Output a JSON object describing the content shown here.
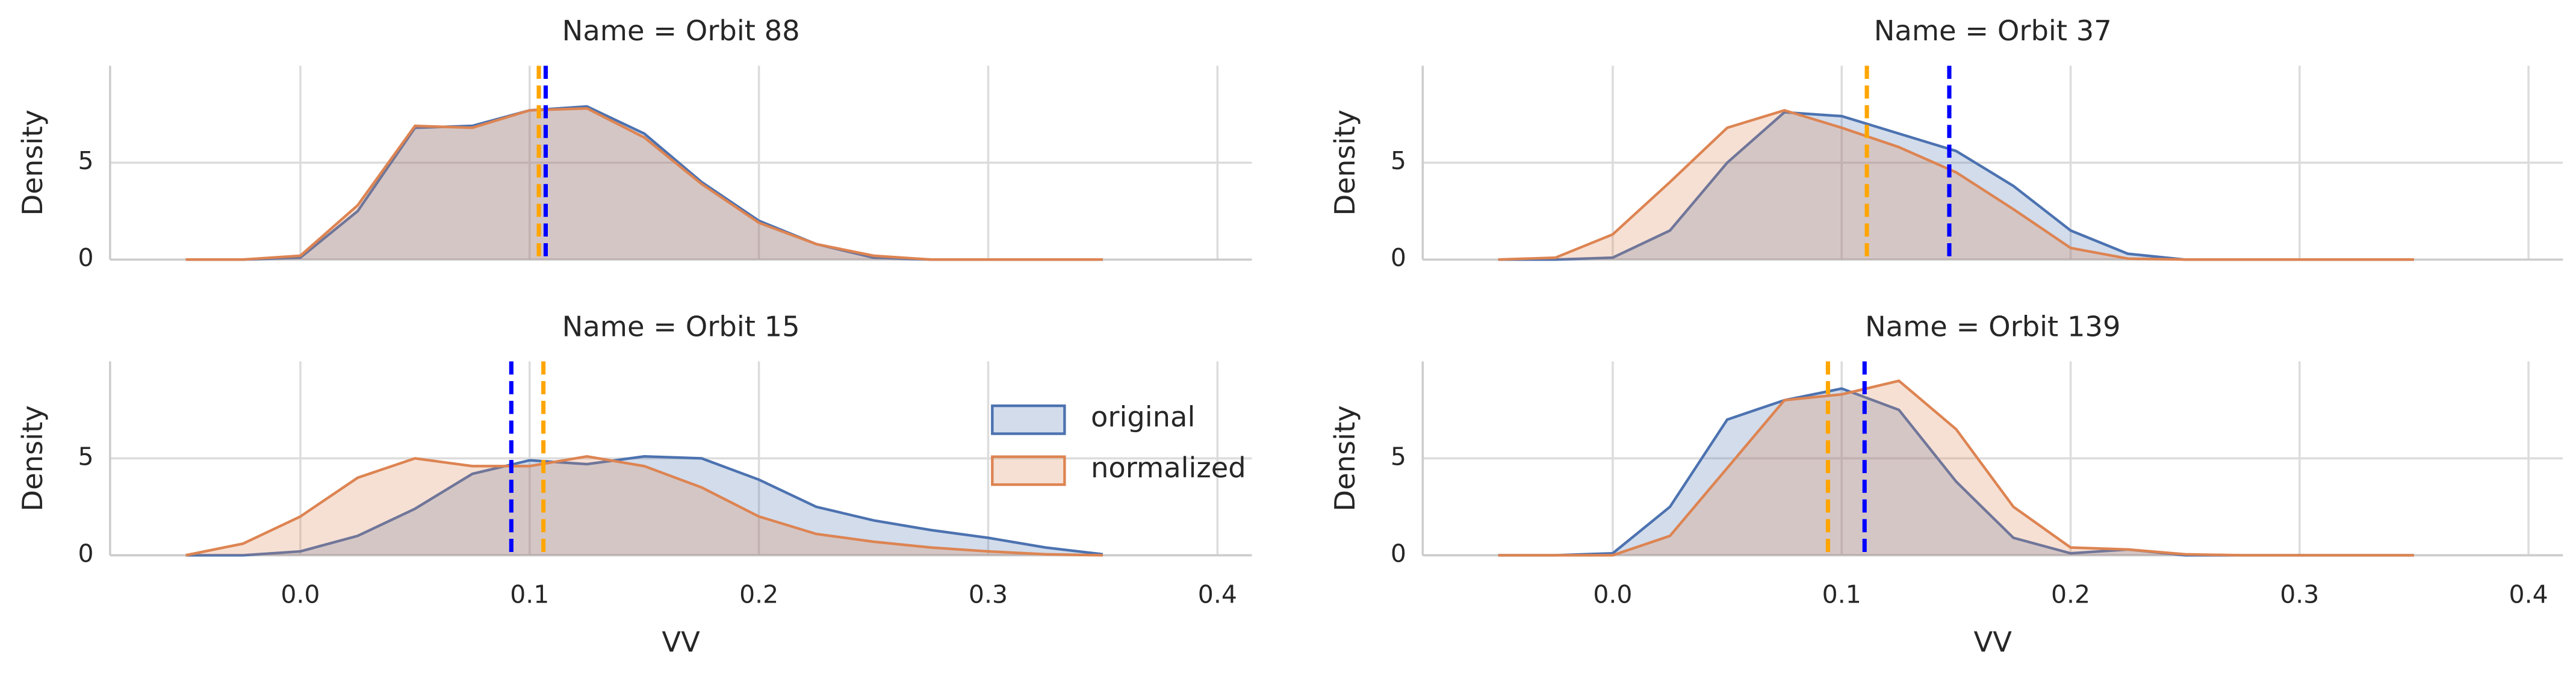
{
  "chart_data": [
    {
      "type": "kde",
      "title": "Name = Orbit 88",
      "ylabel": "Density",
      "x": [
        -0.05,
        -0.025,
        0,
        0.025,
        0.05,
        0.075,
        0.1,
        0.125,
        0.15,
        0.175,
        0.2,
        0.225,
        0.25,
        0.275,
        0.3,
        0.325,
        0.35
      ],
      "series": [
        {
          "name": "original",
          "color": "#4c72b0",
          "values": [
            0,
            0,
            0.1,
            2.5,
            6.8,
            6.9,
            7.7,
            7.9,
            6.5,
            4.0,
            2.0,
            0.8,
            0.1,
            0,
            0,
            0,
            0
          ]
        },
        {
          "name": "normalized",
          "color": "#dd8452",
          "values": [
            0,
            0,
            0.2,
            2.8,
            6.9,
            6.8,
            7.7,
            7.8,
            6.3,
            3.9,
            1.9,
            0.8,
            0.2,
            0,
            0,
            0,
            0
          ]
        }
      ],
      "mean_lines": [
        {
          "color": "orange",
          "value": 0.104
        },
        {
          "color": "blue",
          "value": 0.107
        }
      ],
      "xlim": [
        -0.083,
        0.415
      ],
      "ylim": [
        0,
        10
      ],
      "xticks": [
        {
          "value": 0,
          "label": "0.0"
        },
        0.1,
        0.2,
        0.3,
        0.4
      ],
      "yticks": [
        0,
        5
      ],
      "grid": true
    },
    {
      "type": "kde",
      "title": "Name = Orbit 37",
      "ylabel": "Density",
      "x": [
        -0.05,
        -0.025,
        0,
        0.025,
        0.05,
        0.075,
        0.1,
        0.125,
        0.15,
        0.175,
        0.2,
        0.225,
        0.25,
        0.275,
        0.3,
        0.325,
        0.35
      ],
      "series": [
        {
          "name": "original",
          "color": "#4c72b0",
          "values": [
            0,
            0,
            0.1,
            1.5,
            5.0,
            7.6,
            7.4,
            6.5,
            5.6,
            3.8,
            1.5,
            0.3,
            0,
            0,
            0,
            0,
            0
          ]
        },
        {
          "name": "normalized",
          "color": "#dd8452",
          "values": [
            0,
            0.1,
            1.3,
            4.0,
            6.8,
            7.7,
            6.8,
            5.8,
            4.5,
            2.6,
            0.6,
            0.05,
            0,
            0,
            0,
            0,
            0
          ]
        }
      ],
      "mean_lines": [
        {
          "color": "orange",
          "value": 0.111
        },
        {
          "color": "blue",
          "value": 0.147
        }
      ],
      "xlim": [
        -0.083,
        0.415
      ],
      "ylim": [
        0,
        10
      ],
      "xticks": [
        {
          "value": 0,
          "label": "0.0"
        },
        0.1,
        0.2,
        0.3,
        0.4
      ],
      "yticks": [
        0,
        5
      ],
      "grid": true
    },
    {
      "type": "kde",
      "title": "Name = Orbit 15",
      "ylabel": "Density",
      "xlabel": "VV",
      "legend": "center right",
      "x": [
        -0.05,
        -0.025,
        0,
        0.025,
        0.05,
        0.075,
        0.1,
        0.125,
        0.15,
        0.175,
        0.2,
        0.225,
        0.25,
        0.275,
        0.3,
        0.325,
        0.35
      ],
      "series": [
        {
          "name": "original",
          "color": "#4c72b0",
          "values": [
            0,
            0,
            0.2,
            1.0,
            2.4,
            4.2,
            4.9,
            4.7,
            5.1,
            5.0,
            3.9,
            2.5,
            1.8,
            1.3,
            0.9,
            0.4,
            0.05
          ]
        },
        {
          "name": "normalized",
          "color": "#dd8452",
          "values": [
            0,
            0.6,
            2.0,
            4.0,
            5.0,
            4.6,
            4.6,
            5.1,
            4.6,
            3.5,
            2.0,
            1.1,
            0.7,
            0.4,
            0.2,
            0.05,
            0
          ]
        }
      ],
      "mean_lines": [
        {
          "color": "blue",
          "value": 0.092
        },
        {
          "color": "orange",
          "value": 0.106
        }
      ],
      "xlim": [
        -0.083,
        0.415
      ],
      "ylim": [
        0,
        10
      ],
      "xticks": [
        {
          "value": 0,
          "label": "0.0"
        },
        0.1,
        0.2,
        0.3,
        0.4
      ],
      "yticks": [
        0,
        5
      ],
      "grid": true
    },
    {
      "type": "kde",
      "title": "Name = Orbit 139",
      "ylabel": "Density",
      "xlabel": "VV",
      "x": [
        -0.05,
        -0.025,
        0,
        0.025,
        0.05,
        0.075,
        0.1,
        0.125,
        0.15,
        0.175,
        0.2,
        0.225,
        0.25,
        0.275,
        0.3,
        0.325,
        0.35
      ],
      "series": [
        {
          "name": "original",
          "color": "#4c72b0",
          "values": [
            0,
            0,
            0.1,
            2.5,
            7.0,
            8.0,
            8.6,
            7.5,
            3.8,
            0.9,
            0.1,
            0.3,
            0,
            0,
            0,
            0,
            0
          ]
        },
        {
          "name": "normalized",
          "color": "#dd8452",
          "values": [
            0,
            0,
            0,
            1.0,
            4.5,
            8.0,
            8.3,
            9.0,
            6.5,
            2.5,
            0.4,
            0.3,
            0.05,
            0,
            0,
            0,
            0
          ]
        }
      ],
      "mean_lines": [
        {
          "color": "orange",
          "value": 0.094
        },
        {
          "color": "blue",
          "value": 0.11
        }
      ],
      "xlim": [
        -0.083,
        0.415
      ],
      "ylim": [
        0,
        10
      ],
      "xticks": [
        {
          "value": 0,
          "label": "0.0"
        },
        0.1,
        0.2,
        0.3,
        0.4
      ],
      "yticks": [
        0,
        5
      ],
      "grid": true
    }
  ]
}
